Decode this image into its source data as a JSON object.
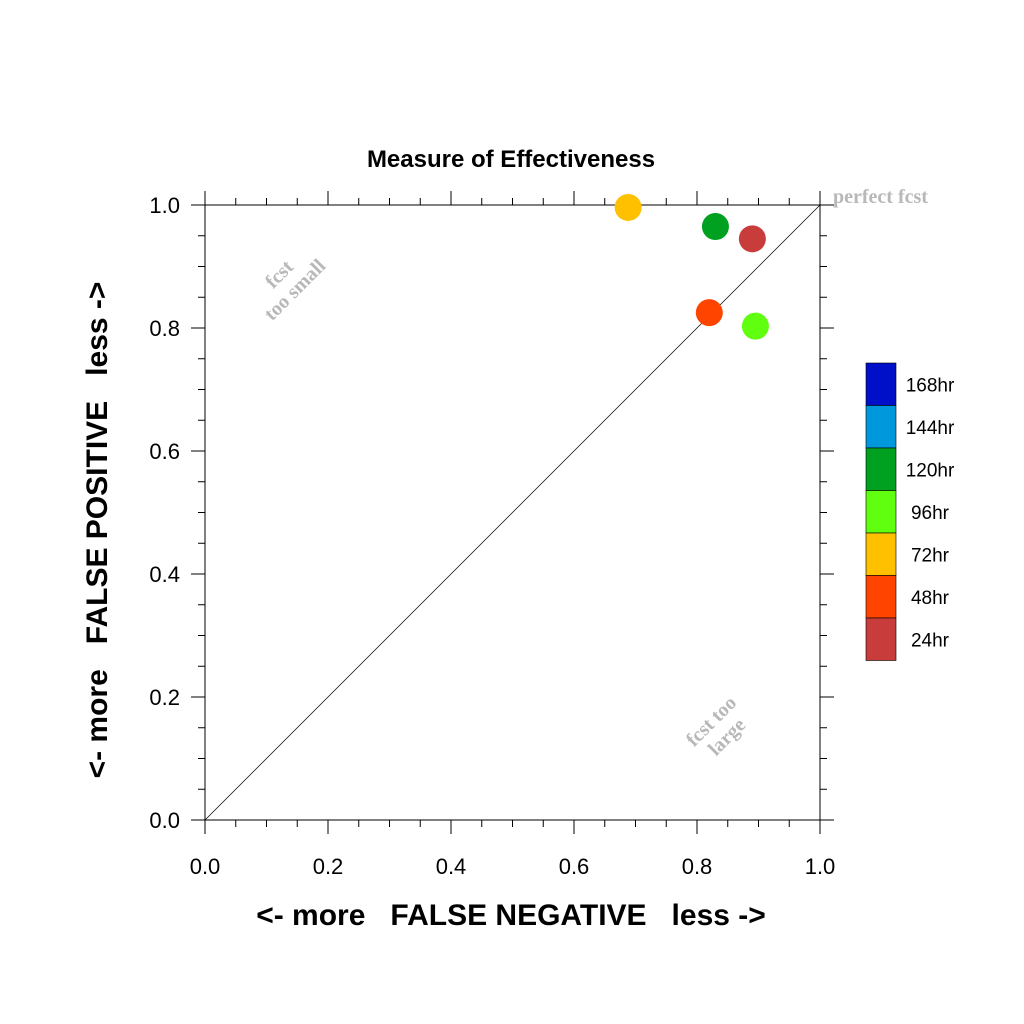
{
  "chart_data": {
    "type": "scatter",
    "title": "Measure of Effectiveness",
    "xlabel": "<- more   FALSE NEGATIVE   less ->",
    "ylabel": "<- more   FALSE POSITIVE   less ->",
    "xlim": [
      0,
      1
    ],
    "ylim": [
      0,
      1
    ],
    "x_ticks": [
      "0.0",
      "0.2",
      "0.4",
      "0.6",
      "0.8",
      "1.0"
    ],
    "y_ticks": [
      "0.0",
      "0.2",
      "0.4",
      "0.6",
      "0.8",
      "1.0"
    ],
    "diagonal": true,
    "grid": false,
    "legend_placement": "right",
    "annotations": {
      "perfect": "perfect fcst",
      "too_small": [
        "fcst",
        "too small"
      ],
      "too_large": [
        "fcst too",
        "large"
      ]
    },
    "series": [
      {
        "name": "24hr",
        "color": "#c83c3c",
        "x": 0.89,
        "y": 0.945
      },
      {
        "name": "48hr",
        "color": "#ff4400",
        "x": 0.82,
        "y": 0.825
      },
      {
        "name": "72hr",
        "color": "#ffc000",
        "x": 0.688,
        "y": 0.996
      },
      {
        "name": "96hr",
        "color": "#60ff10",
        "x": 0.895,
        "y": 0.803
      },
      {
        "name": "120hr",
        "color": "#00a020",
        "x": 0.83,
        "y": 0.965
      }
    ],
    "legend": [
      {
        "label": "168hr",
        "color": "#0010c8"
      },
      {
        "label": "144hr",
        "color": "#0098dc"
      },
      {
        "label": "120hr",
        "color": "#00a020"
      },
      {
        "label": "96hr",
        "color": "#60ff10"
      },
      {
        "label": "72hr",
        "color": "#ffc000"
      },
      {
        "label": "48hr",
        "color": "#ff4400"
      },
      {
        "label": "24hr",
        "color": "#c83c3c"
      }
    ]
  }
}
